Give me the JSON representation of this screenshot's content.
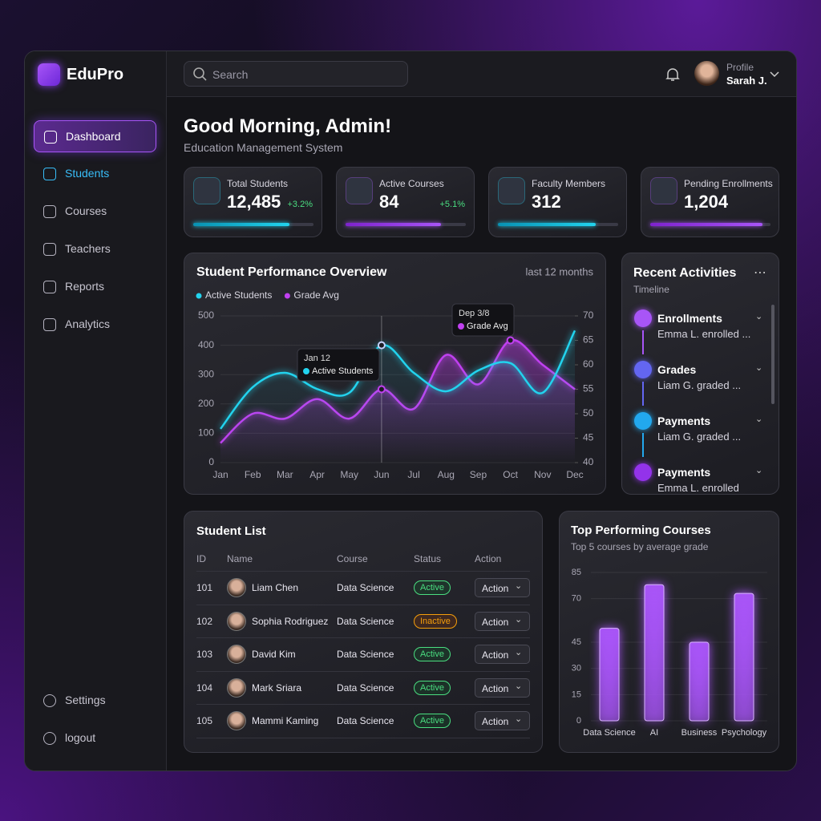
{
  "brand": "EduPro",
  "search": "Search",
  "profile": {
    "label": "Profile",
    "name": "Sarah J."
  },
  "nav": [
    "Dashboard",
    "Students",
    "Courses",
    "Teachers",
    "Reports",
    "Analytics"
  ],
  "nav_footer": [
    "Settings",
    "logout"
  ],
  "header": {
    "title": "Good Morning, Admin!",
    "subtitle": "Education Management System"
  },
  "stats": [
    {
      "label": "Total Students",
      "value": "12,485",
      "change": "+3.2%",
      "progress": 80
    },
    {
      "label": "Active Courses",
      "value": "84",
      "change": "+5.1%",
      "progress": 79
    },
    {
      "label": "Faculty Members",
      "value": "312",
      "progress": 81
    },
    {
      "label": "Pending Enrollments",
      "value": "1,204",
      "progress": 93
    }
  ],
  "activities": {
    "title": "Recent Activities",
    "subtitle": "Timeline",
    "items": [
      {
        "title": "Enrollments",
        "text": "Emma L. enrolled ..."
      },
      {
        "title": "Grades",
        "text": "Liam G. graded ..."
      },
      {
        "title": "Payments",
        "text": "Liam G. graded ..."
      },
      {
        "title": "Payments",
        "text": "Emma L. enrolled"
      }
    ]
  },
  "students": {
    "title": "Student List",
    "columns": [
      "ID",
      "Name",
      "Course",
      "Status",
      "Action"
    ],
    "rows": [
      [
        "101",
        "Liam Chen",
        "Data Science",
        "Active",
        "Action"
      ],
      [
        "102",
        "Sophia Rodriguez",
        "Data Science",
        "Inactive",
        "Action"
      ],
      [
        "103",
        "David Kim",
        "Data Science",
        "Active",
        "Action"
      ],
      [
        "104",
        "Mark Sriara",
        "Data Science",
        "Active",
        "Action"
      ],
      [
        "105",
        "Mammi Kaming",
        "Data Science",
        "Active",
        "Action"
      ]
    ]
  },
  "chart_data": [
    {
      "type": "line",
      "title": "Student Performance Overview",
      "subtitle": "last 12 months",
      "categories": [
        "Jan",
        "Feb",
        "Mar",
        "Apr",
        "May",
        "Jun",
        "Jul",
        "Aug",
        "Sep",
        "Oct",
        "Nov",
        "Dec"
      ],
      "series": [
        {
          "name": "Active Students",
          "color": "#22d3ee",
          "values": [
            115,
            257,
            306,
            251,
            238,
            400,
            306,
            243,
            314,
            339,
            238,
            450
          ]
        },
        {
          "name": "Grade Avg",
          "color": "#c040f0",
          "axis": "y2",
          "values": [
            44,
            50,
            49,
            53,
            49,
            55,
            51,
            62,
            56,
            65,
            60,
            55
          ]
        }
      ],
      "ylim": [
        0,
        500
      ],
      "yticks": [
        0,
        100,
        200,
        300,
        400,
        500
      ],
      "y2lim": [
        40,
        70
      ],
      "y2ticks": [
        40,
        45,
        50,
        55,
        60,
        65,
        70
      ],
      "annotations": [
        {
          "title": "Jan 12",
          "text": "Active Students"
        },
        {
          "title": "Dep 3/8",
          "text": "Grade Avg"
        }
      ]
    },
    {
      "type": "bar",
      "title": "Top Performing Courses",
      "subtitle": "Top 5 courses by average grade",
      "categories": [
        "Data Science",
        "AI",
        "Business",
        "Psychology"
      ],
      "values": [
        53,
        78,
        45,
        73
      ],
      "color": "#a855f7",
      "ylim": [
        0,
        85
      ],
      "yticks": [
        0,
        15,
        30,
        45,
        70,
        85
      ],
      "grid": true
    }
  ]
}
